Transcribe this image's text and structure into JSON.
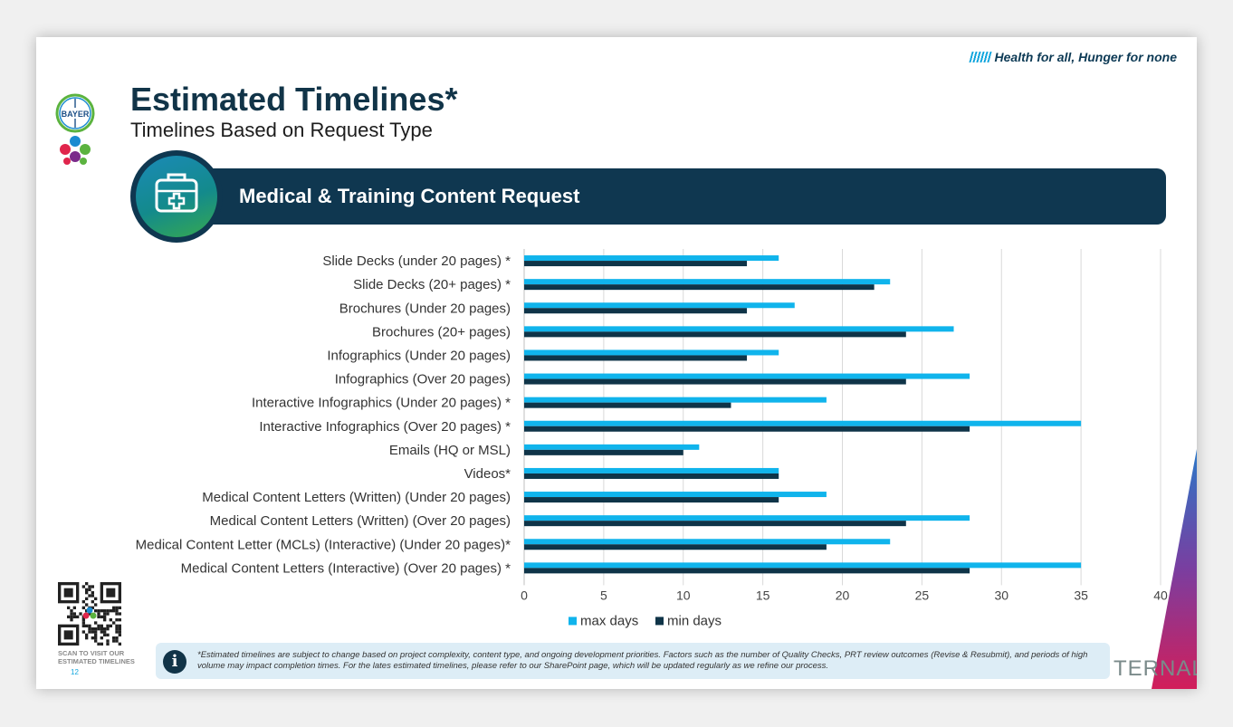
{
  "header": {
    "tagline": "Health for all, Hunger for none",
    "title": "Estimated Timelines*",
    "subtitle": "Timelines Based on Request Type",
    "logo_text": "BAYER"
  },
  "banner": {
    "label": "Medical & Training Content Request",
    "icon": "medical-kit-icon"
  },
  "chart_data": {
    "type": "bar",
    "orientation": "horizontal",
    "categories": [
      "Slide Decks (under 20 pages) *",
      "Slide Decks (20+ pages) *",
      "Brochures (Under 20 pages)",
      "Brochures (20+ pages)",
      "Infographics (Under 20 pages)",
      "Infographics (Over 20 pages)",
      "Interactive Infographics (Under 20 pages) *",
      "Interactive Infographics (Over 20 pages) *",
      "Emails (HQ or MSL)",
      "Videos*",
      "Medical Content Letters (Written) (Under 20 pages)",
      "Medical Content Letters (Written) (Over 20 pages)",
      "Medical Content Letter (MCLs) (Interactive) (Under 20 pages)*",
      "Medical Content Letters (Interactive) (Over 20 pages) *"
    ],
    "series": [
      {
        "name": "max days",
        "color": "#10b4ec",
        "values": [
          16,
          23,
          17,
          27,
          16,
          28,
          19,
          35,
          11,
          16,
          19,
          28,
          23,
          35
        ]
      },
      {
        "name": "min days",
        "color": "#0f3448",
        "values": [
          14,
          22,
          14,
          24,
          14,
          24,
          13,
          28,
          10,
          16,
          16,
          24,
          19,
          28
        ]
      }
    ],
    "xlim": [
      0,
      40
    ],
    "xticks": [
      "0",
      "5",
      "10",
      "15",
      "20",
      "25",
      "30",
      "35",
      "40"
    ],
    "grid": "vertical",
    "legend": "bottom"
  },
  "footer": {
    "qr_caption_line1": "SCAN TO VISIT OUR",
    "qr_caption_line2": "ESTIMATED TIMELINES",
    "page_number": "12",
    "info_icon_glyph": "i",
    "note": "*Estimated timelines are subject to change based on project complexity, content type, and ongoing development priorities. Factors such as the number of Quality Checks, PRT review outcomes (Revise & Resubmit), and periods of high volume may impact completion times. For the lates estimated timelines, please refer to our SharePoint page, which will be updated regularly as we refine our process.",
    "classification": "TERNAL"
  },
  "colors": {
    "navy": "#0f3750",
    "accent": "#10a5dd"
  }
}
